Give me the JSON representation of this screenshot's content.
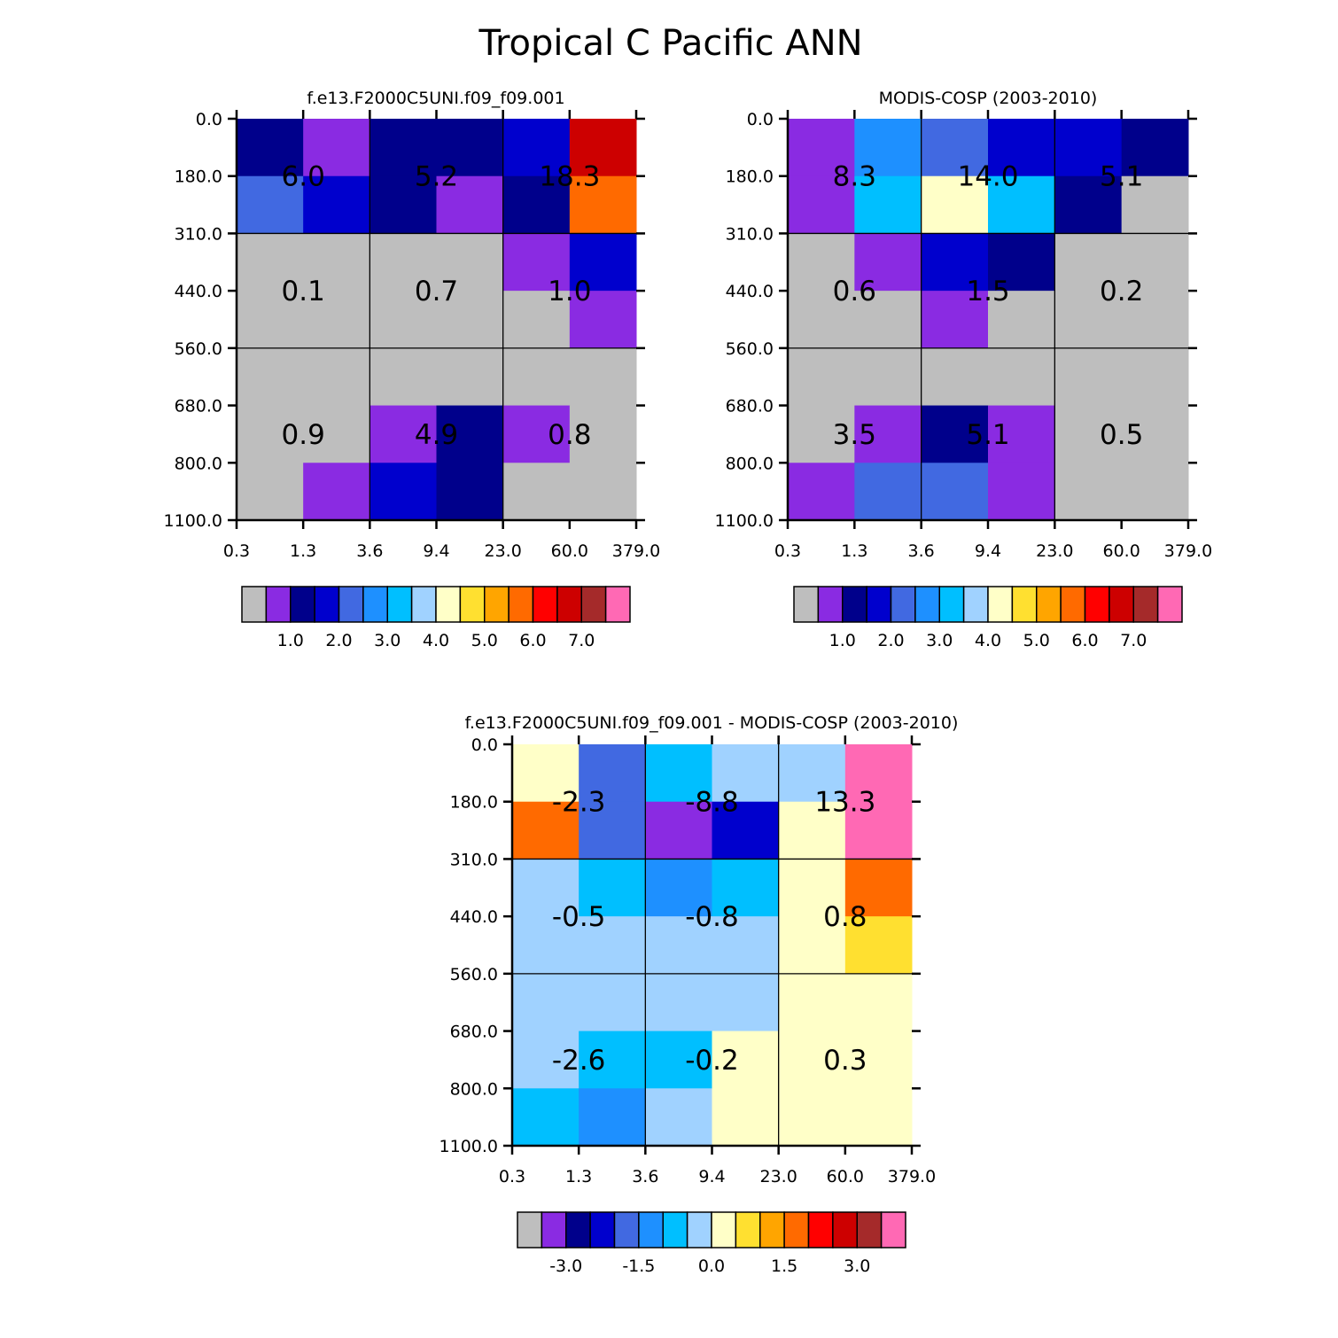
{
  "page": {
    "title": "Tropical C Pacific ANN"
  },
  "chart_data": [
    {
      "type": "heatmap",
      "title": "f.e13.F2000C5UNI.f09_f09.001",
      "x_tick_labels": [
        "0.3",
        "1.3",
        "3.6",
        "9.4",
        "23.0",
        "60.0",
        "379.0"
      ],
      "y_tick_labels": [
        "0.0",
        "180.0",
        "310.0",
        "440.0",
        "560.0",
        "680.0",
        "800.0",
        "1100.0"
      ],
      "xlabel": "",
      "ylabel": "",
      "cells": [
        [
          "navy",
          "purple",
          "navy",
          "navy",
          "medblue",
          "darkred"
        ],
        [
          "royalblue",
          "medblue",
          "navy",
          "purple",
          "navy",
          "orange"
        ],
        [
          "gray",
          "gray",
          "gray",
          "gray",
          "purple",
          "medblue"
        ],
        [
          "gray",
          "gray",
          "gray",
          "gray",
          "gray",
          "purple"
        ],
        [
          "gray",
          "gray",
          "gray",
          "gray",
          "gray",
          "gray"
        ],
        [
          "gray",
          "gray",
          "purple",
          "navy",
          "purple",
          "gray"
        ],
        [
          "gray",
          "purple",
          "medblue",
          "navy",
          "gray",
          "gray"
        ]
      ],
      "block_values": [
        [
          "6.0",
          "5.2",
          "18.3"
        ],
        [
          "0.1",
          "0.7",
          "1.0"
        ],
        [
          "0.9",
          "4.9",
          "0.8"
        ]
      ],
      "colorbar": {
        "labels": [
          "1.0",
          "2.0",
          "3.0",
          "4.0",
          "5.0",
          "6.0",
          "7.0"
        ]
      }
    },
    {
      "type": "heatmap",
      "title": "MODIS-COSP (2003-2010)",
      "x_tick_labels": [
        "0.3",
        "1.3",
        "3.6",
        "9.4",
        "23.0",
        "60.0",
        "379.0"
      ],
      "y_tick_labels": [
        "0.0",
        "180.0",
        "310.0",
        "440.0",
        "560.0",
        "680.0",
        "800.0",
        "1100.0"
      ],
      "xlabel": "",
      "ylabel": "",
      "cells": [
        [
          "purple",
          "dodger",
          "royalblue",
          "medblue",
          "medblue",
          "navy"
        ],
        [
          "purple",
          "skyblue",
          "cream",
          "skyblue",
          "navy",
          "gray"
        ],
        [
          "gray",
          "purple",
          "medblue",
          "navy",
          "gray",
          "gray"
        ],
        [
          "gray",
          "gray",
          "purple",
          "gray",
          "gray",
          "gray"
        ],
        [
          "gray",
          "gray",
          "gray",
          "gray",
          "gray",
          "gray"
        ],
        [
          "gray",
          "purple",
          "navy",
          "purple",
          "gray",
          "gray"
        ],
        [
          "purple",
          "royalblue",
          "royalblue",
          "purple",
          "gray",
          "gray"
        ]
      ],
      "block_values": [
        [
          "8.3",
          "14.0",
          "5.1"
        ],
        [
          "0.6",
          "1.5",
          "0.2"
        ],
        [
          "3.5",
          "5.1",
          "0.5"
        ]
      ],
      "colorbar": {
        "labels": [
          "1.0",
          "2.0",
          "3.0",
          "4.0",
          "5.0",
          "6.0",
          "7.0"
        ]
      }
    },
    {
      "type": "heatmap",
      "title": "f.e13.F2000C5UNI.f09_f09.001 - MODIS-COSP (2003-2010)",
      "x_tick_labels": [
        "0.3",
        "1.3",
        "3.6",
        "9.4",
        "23.0",
        "60.0",
        "379.0"
      ],
      "y_tick_labels": [
        "0.0",
        "180.0",
        "310.0",
        "440.0",
        "560.0",
        "680.0",
        "800.0",
        "1100.0"
      ],
      "xlabel": "",
      "ylabel": "",
      "cells": [
        [
          "cream",
          "royalblue",
          "skyblue",
          "lightblue",
          "lightblue",
          "pink"
        ],
        [
          "orange",
          "royalblue",
          "purple",
          "medblue",
          "cream",
          "pink"
        ],
        [
          "lightblue",
          "skyblue",
          "dodger",
          "skyblue",
          "cream",
          "orange"
        ],
        [
          "lightblue",
          "lightblue",
          "lightblue",
          "lightblue",
          "cream",
          "yellow"
        ],
        [
          "lightblue",
          "lightblue",
          "lightblue",
          "lightblue",
          "cream",
          "cream"
        ],
        [
          "lightblue",
          "skyblue",
          "skyblue",
          "cream",
          "cream",
          "cream"
        ],
        [
          "skyblue",
          "dodger",
          "lightblue",
          "cream",
          "cream",
          "cream"
        ]
      ],
      "block_values": [
        [
          "-2.3",
          "-8.8",
          "13.3"
        ],
        [
          "-0.5",
          "-0.8",
          "0.8"
        ],
        [
          "-2.6",
          "-0.2",
          "0.3"
        ]
      ],
      "colorbar": {
        "labels": [
          "-3.0",
          "-1.5",
          "0.0",
          "1.5",
          "3.0"
        ]
      }
    }
  ],
  "colors": {
    "gray": "#bebebe",
    "purple": "#8a2be2",
    "navy": "#00008b",
    "medblue": "#0000cd",
    "royalblue": "#4169e1",
    "dodger": "#1e90ff",
    "skyblue": "#00bfff",
    "lightblue": "#a0d2ff",
    "cream": "#ffffc8",
    "yellow": "#ffe030",
    "gold": "#ffa500",
    "orange": "#ff6a00",
    "red": "#ff0000",
    "darkred": "#cd0000",
    "brown": "#a52a2a",
    "pink": "#ff69b4"
  },
  "colorbar_sequence": [
    "gray",
    "purple",
    "navy",
    "medblue",
    "royalblue",
    "dodger",
    "skyblue",
    "lightblue",
    "cream",
    "yellow",
    "gold",
    "orange",
    "red",
    "darkred",
    "brown",
    "pink"
  ]
}
